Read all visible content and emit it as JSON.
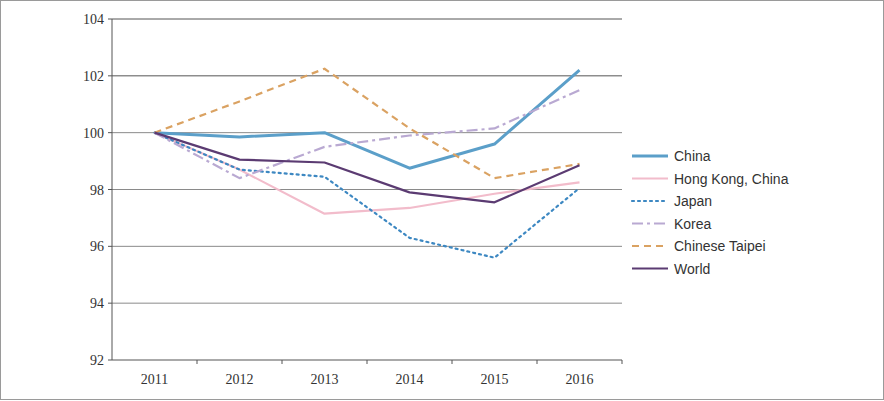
{
  "chart_data": {
    "type": "line",
    "categories": [
      "2011",
      "2012",
      "2013",
      "2014",
      "2015",
      "2016"
    ],
    "series": [
      {
        "name": "China",
        "color": "#5b9fc9",
        "line_style": "solid",
        "values": [
          100,
          99.85,
          100,
          98.75,
          99.6,
          102.2
        ]
      },
      {
        "name": "Hong Kong, China",
        "color": "#f2bccb",
        "line_style": "solid",
        "values": [
          100,
          98.7,
          97.15,
          97.35,
          97.85,
          98.25
        ]
      },
      {
        "name": "Japan",
        "color": "#3d88c2",
        "line_style": "dotted",
        "values": [
          100,
          98.7,
          98.45,
          96.3,
          95.6,
          98.05
        ]
      },
      {
        "name": "Korea",
        "color": "#b9a9d2",
        "line_style": "dashdot",
        "values": [
          100,
          98.4,
          99.5,
          99.9,
          100.15,
          101.5
        ]
      },
      {
        "name": "Chinese Taipei",
        "color": "#daa262",
        "line_style": "dashed",
        "values": [
          100,
          101.1,
          102.25,
          100.15,
          98.4,
          98.9
        ]
      },
      {
        "name": "World",
        "color": "#5b3b72",
        "line_style": "solid",
        "values": [
          100,
          99.05,
          98.95,
          97.9,
          97.55,
          98.85
        ]
      }
    ],
    "ylim": [
      92,
      104
    ],
    "yticks": [
      92,
      94,
      96,
      98,
      100,
      102,
      104
    ],
    "grid": true,
    "legend": "right"
  }
}
